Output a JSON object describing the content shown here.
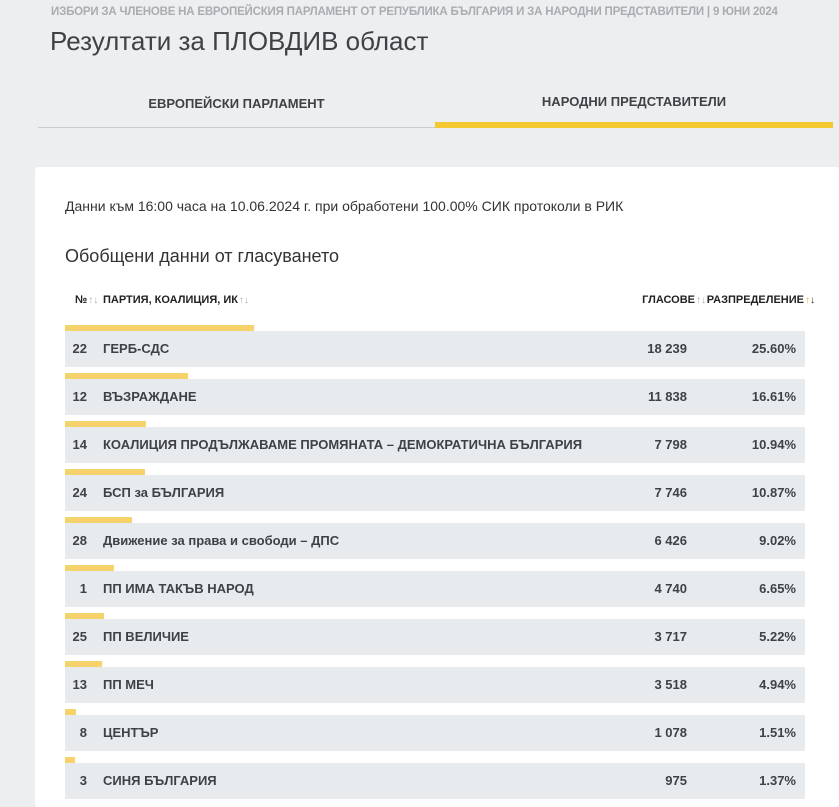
{
  "header": {
    "supertitle": "ИЗБОРИ ЗА ЧЛЕНОВЕ НА ЕВРОПЕЙСКИЯ ПАРЛАМЕНТ ОТ РЕПУБЛИКА БЪЛГАРИЯ И ЗА НАРОДНИ ПРЕДСТАВИТЕЛИ | 9 ЮНИ 2024",
    "title": "Резултати за ПЛОВДИВ област"
  },
  "tabs": [
    {
      "label": "ЕВРОПЕЙСКИ ПАРЛАМЕНТ",
      "active": false
    },
    {
      "label": "НАРОДНИ ПРЕДСТАВИТЕЛИ",
      "active": true
    }
  ],
  "status_line": "Данни към 16:00 часа на 10.06.2024 г. при обработени 100.00% СИК протоколи в РИК",
  "section_title": "Обобщени данни от гласуването",
  "table": {
    "headers": {
      "num": "№",
      "party": "ПАРТИЯ, КОАЛИЦИЯ, ИК",
      "votes": "ГЛАСОВЕ",
      "share": "РАЗПРЕДЕЛЕНИЕ"
    },
    "rows": [
      {
        "num": "22",
        "party": "ГЕРБ-СДС",
        "votes": "18 239",
        "share": "25.60%",
        "share_value": 25.6
      },
      {
        "num": "12",
        "party": "ВЪЗРАЖДАНЕ",
        "votes": "11 838",
        "share": "16.61%",
        "share_value": 16.61
      },
      {
        "num": "14",
        "party": "КОАЛИЦИЯ ПРОДЪЛЖАВАМЕ ПРОМЯНАТА – ДЕМОКРАТИЧНА БЪЛГАРИЯ",
        "votes": "7 798",
        "share": "10.94%",
        "share_value": 10.94
      },
      {
        "num": "24",
        "party": "БСП за БЪЛГАРИЯ",
        "votes": "7 746",
        "share": "10.87%",
        "share_value": 10.87
      },
      {
        "num": "28",
        "party": "Движение за права и свободи – ДПС",
        "votes": "6 426",
        "share": "9.02%",
        "share_value": 9.02
      },
      {
        "num": "1",
        "party": "ПП ИМА ТАКЪВ НАРОД",
        "votes": "4 740",
        "share": "6.65%",
        "share_value": 6.65
      },
      {
        "num": "25",
        "party": "ПП ВЕЛИЧИЕ",
        "votes": "3 717",
        "share": "5.22%",
        "share_value": 5.22
      },
      {
        "num": "13",
        "party": "ПП МЕЧ",
        "votes": "3 518",
        "share": "4.94%",
        "share_value": 4.94
      },
      {
        "num": "8",
        "party": "ЦЕНТЪР",
        "votes": "1 078",
        "share": "1.51%",
        "share_value": 1.51
      },
      {
        "num": "3",
        "party": "СИНЯ БЪЛГАРИЯ",
        "votes": "975",
        "share": "1.37%",
        "share_value": 1.37
      }
    ]
  },
  "colors": {
    "accent": "#f4c830",
    "bar": "#f5d36a",
    "row_band": "#e8ebee",
    "background": "#eceef0"
  }
}
